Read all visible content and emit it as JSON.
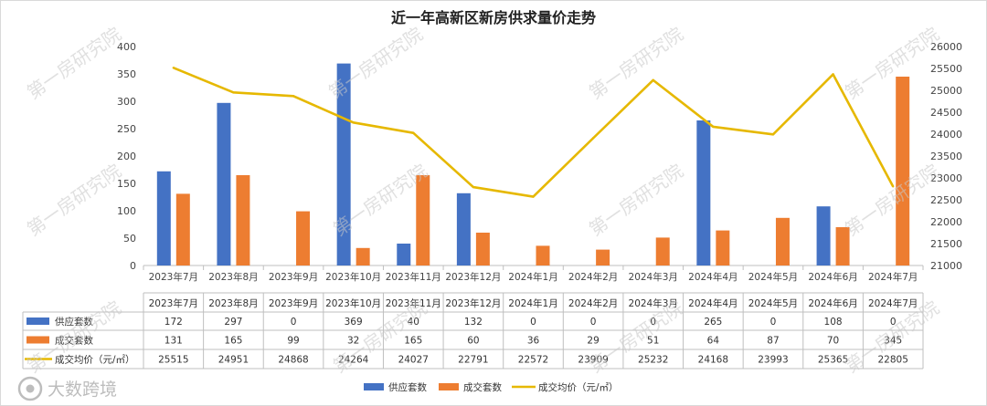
{
  "chart_data": {
    "type": "bar",
    "title": "近一年高新区新房供求量价走势",
    "categories": [
      "2023年7月",
      "2023年8月",
      "2023年9月",
      "2023年10月",
      "2023年11月",
      "2023年12月",
      "2024年1月",
      "2024年2月",
      "2024年3月",
      "2024年4月",
      "2024年5月",
      "2024年6月",
      "2024年7月"
    ],
    "series": [
      {
        "name": "供应套数",
        "kind": "bar",
        "axis": "left",
        "color": "#4472C4",
        "values": [
          172,
          297,
          0,
          369,
          40,
          132,
          0,
          0,
          0,
          265,
          0,
          108,
          0
        ]
      },
      {
        "name": "成交套数",
        "kind": "bar",
        "axis": "left",
        "color": "#ED7D31",
        "values": [
          131,
          165,
          99,
          32,
          165,
          60,
          36,
          29,
          51,
          64,
          87,
          70,
          345
        ]
      },
      {
        "name": "成交均价（元/㎡）",
        "kind": "line",
        "axis": "right",
        "color": "#E6B800",
        "values": [
          25515,
          24951,
          24868,
          24264,
          24027,
          22791,
          22572,
          23909,
          25232,
          24168,
          23993,
          25365,
          22805
        ]
      }
    ],
    "ylim_left": [
      0,
      400
    ],
    "yticks_left": [
      0,
      50,
      100,
      150,
      200,
      250,
      300,
      350,
      400
    ],
    "ylim_right": [
      21000,
      26000
    ],
    "yticks_right": [
      21000,
      21500,
      22000,
      22500,
      23000,
      23500,
      24000,
      24500,
      25000,
      25500,
      26000
    ],
    "legend_position": "bottom",
    "grid": false,
    "data_table": true
  },
  "watermark_text": "第一房研究院",
  "logo_text": "大数跨境"
}
